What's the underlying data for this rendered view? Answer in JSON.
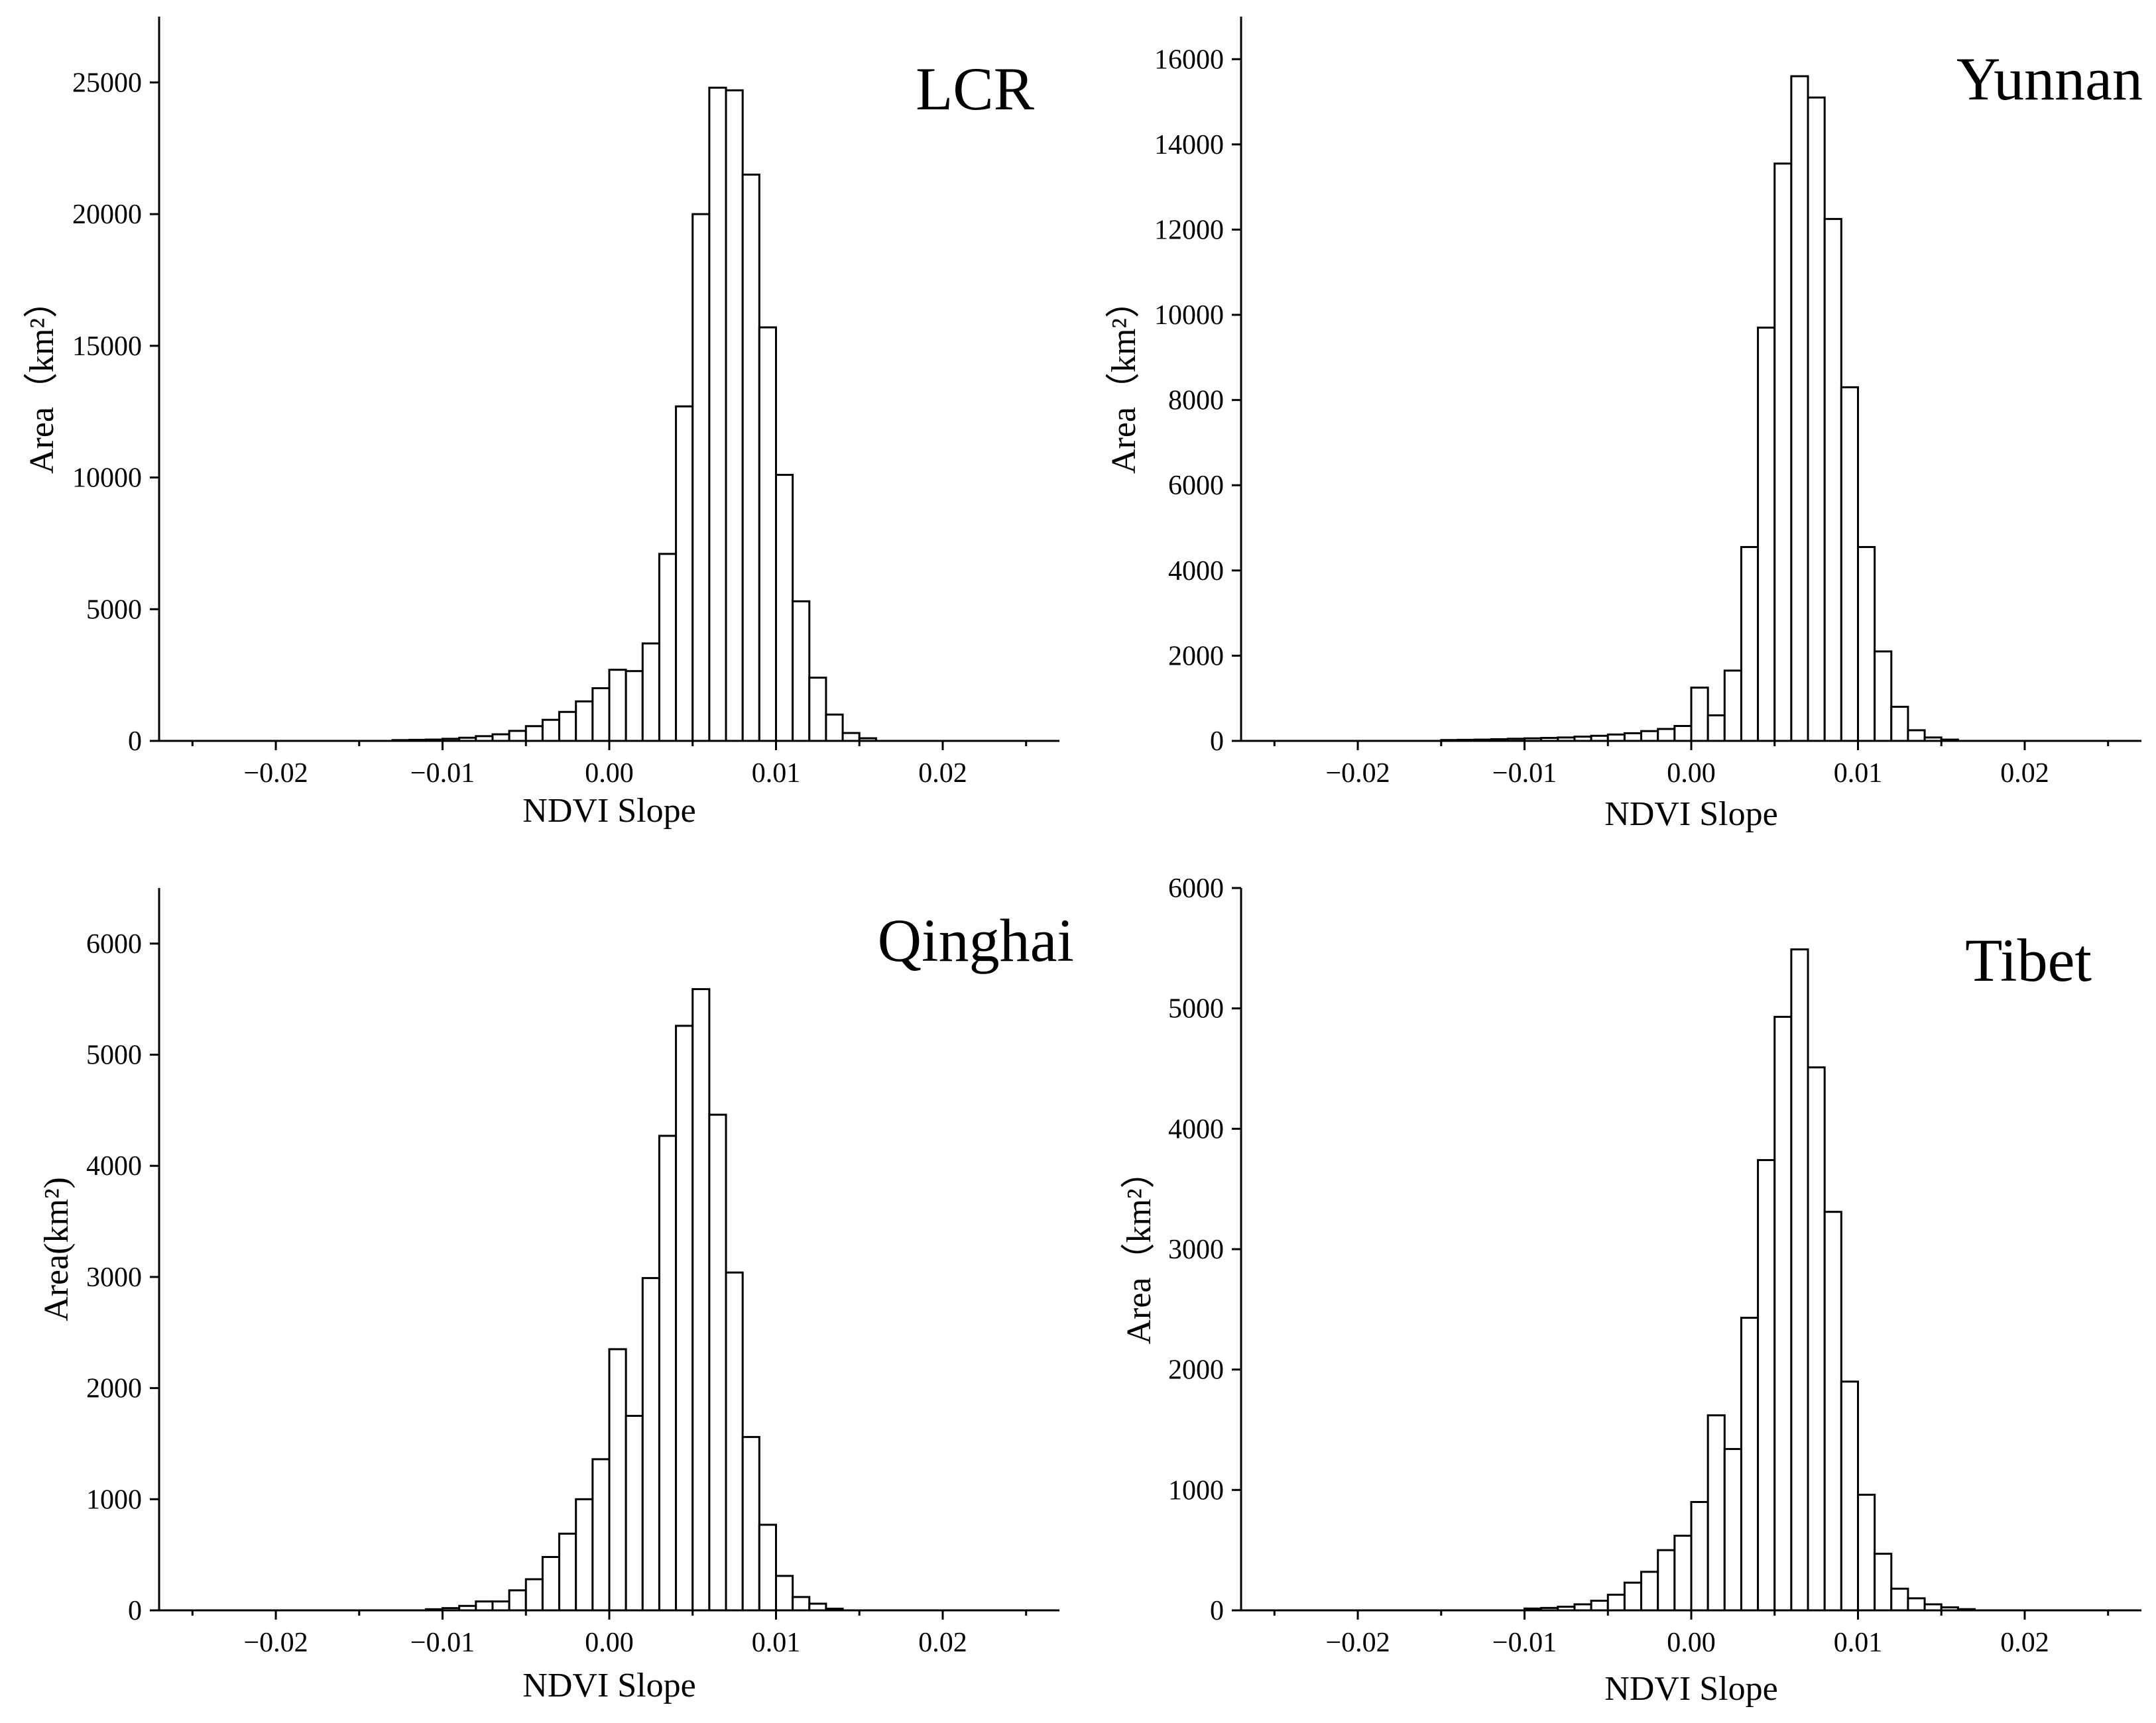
{
  "chart_data": [
    {
      "type": "bar",
      "title": "LCR",
      "xlabel": "NDVI Slope",
      "ylabel": "Area（km²）",
      "xlim": [
        -0.027,
        0.027
      ],
      "ylim": [
        0,
        27500
      ],
      "xticks": [
        -0.02,
        -0.01,
        0.0,
        0.01,
        0.02
      ],
      "xtick_labels": [
        "−0.02",
        "−0.01",
        "0.00",
        "0.01",
        "0.02"
      ],
      "yticks": [
        0,
        5000,
        10000,
        15000,
        20000,
        25000
      ],
      "ytick_labels": [
        "0",
        "5000",
        "10000",
        "15000",
        "20000",
        "25000"
      ],
      "bin_width": 0.001,
      "x": [
        -0.0125,
        -0.0115,
        -0.0105,
        -0.0095,
        -0.0085,
        -0.0075,
        -0.0065,
        -0.0055,
        -0.0045,
        -0.0035,
        -0.0025,
        -0.0015,
        -0.0005,
        0.0005,
        0.0015,
        0.0025,
        0.0035,
        0.0045,
        0.0055,
        0.0065,
        0.0075,
        0.0085,
        0.0095,
        0.0105,
        0.0115,
        0.0125,
        0.0135,
        0.0145,
        0.0155
      ],
      "values": [
        30,
        40,
        50,
        80,
        120,
        180,
        250,
        380,
        560,
        800,
        1100,
        1500,
        2000,
        2700,
        2650,
        3700,
        7100,
        12700,
        20000,
        24800,
        24700,
        21500,
        15700,
        10100,
        5300,
        2400,
        1000,
        300,
        100
      ]
    },
    {
      "type": "bar",
      "title": "Yunnan",
      "xlabel": "NDVI Slope",
      "ylabel": "Area（km²）",
      "xlim": [
        -0.027,
        0.027
      ],
      "ylim": [
        0,
        17000
      ],
      "xticks": [
        -0.02,
        -0.01,
        0.0,
        0.01,
        0.02
      ],
      "xtick_labels": [
        "−0.02",
        "−0.01",
        "0.00",
        "0.01",
        "0.02"
      ],
      "yticks": [
        0,
        2000,
        4000,
        6000,
        8000,
        10000,
        12000,
        14000,
        16000
      ],
      "ytick_labels": [
        "0",
        "2000",
        "4000",
        "6000",
        "8000",
        "10000",
        "12000",
        "14000",
        "16000"
      ],
      "bin_width": 0.001,
      "x": [
        -0.0145,
        -0.0135,
        -0.0125,
        -0.0115,
        -0.0105,
        -0.0095,
        -0.0085,
        -0.0075,
        -0.0065,
        -0.0055,
        -0.0045,
        -0.0035,
        -0.0025,
        -0.0015,
        -0.0005,
        0.0005,
        0.0015,
        0.0025,
        0.0035,
        0.0045,
        0.0055,
        0.0065,
        0.0075,
        0.0085,
        0.0095,
        0.0105,
        0.0115,
        0.0125,
        0.0135,
        0.0145,
        0.0155
      ],
      "values": [
        20,
        25,
        30,
        40,
        50,
        60,
        70,
        80,
        100,
        120,
        150,
        180,
        230,
        280,
        350,
        1250,
        600,
        1650,
        4550,
        9700,
        13550,
        15600,
        15100,
        12250,
        8300,
        4550,
        2100,
        800,
        250,
        80,
        30
      ]
    },
    {
      "type": "bar",
      "title": "Qinghai",
      "xlabel": "NDVI Slope",
      "ylabel": "Area(km²)",
      "xlim": [
        -0.027,
        0.027
      ],
      "ylim": [
        0,
        6500
      ],
      "xticks": [
        -0.02,
        -0.01,
        0.0,
        0.01,
        0.02
      ],
      "xtick_labels": [
        "−0.02",
        "−0.01",
        "0.00",
        "0.01",
        "0.02"
      ],
      "yticks": [
        0,
        1000,
        2000,
        3000,
        4000,
        5000,
        6000
      ],
      "ytick_labels": [
        "0",
        "1000",
        "2000",
        "3000",
        "4000",
        "5000",
        "6000"
      ],
      "bin_width": 0.001,
      "x": [
        -0.0105,
        -0.0095,
        -0.0085,
        -0.0075,
        -0.0065,
        -0.0055,
        -0.0045,
        -0.0035,
        -0.0025,
        -0.0015,
        -0.0005,
        0.0005,
        0.0015,
        0.0025,
        0.0035,
        0.0045,
        0.0055,
        0.0065,
        0.0075,
        0.0085,
        0.0095,
        0.0105,
        0.0115,
        0.0125,
        0.0135
      ],
      "values": [
        10,
        20,
        40,
        80,
        80,
        180,
        280,
        480,
        690,
        1000,
        1360,
        2350,
        1750,
        2990,
        4270,
        5260,
        5590,
        4460,
        3040,
        1560,
        770,
        310,
        120,
        60,
        15
      ]
    },
    {
      "type": "bar",
      "title": "Tibet",
      "xlabel": "NDVI Slope",
      "ylabel": "Area（km²）",
      "xlim": [
        -0.027,
        0.027
      ],
      "ylim": [
        0,
        6000
      ],
      "xticks": [
        -0.02,
        -0.01,
        0.0,
        0.01,
        0.02
      ],
      "xtick_labels": [
        "−0.02",
        "−0.01",
        "0.00",
        "0.01",
        "0.02"
      ],
      "yticks": [
        0,
        1000,
        2000,
        3000,
        4000,
        5000,
        6000
      ],
      "ytick_labels": [
        "0",
        "1000",
        "2000",
        "3000",
        "4000",
        "5000",
        "6000"
      ],
      "bin_width": 0.001,
      "x": [
        -0.0095,
        -0.0085,
        -0.0075,
        -0.0065,
        -0.0055,
        -0.0045,
        -0.0035,
        -0.0025,
        -0.0015,
        -0.0005,
        0.0005,
        0.0015,
        0.0025,
        0.0035,
        0.0045,
        0.0055,
        0.0065,
        0.0075,
        0.0085,
        0.0095,
        0.0105,
        0.0115,
        0.0125,
        0.0135,
        0.0145,
        0.0155,
        0.0165
      ],
      "values": [
        15,
        20,
        30,
        50,
        80,
        130,
        230,
        320,
        500,
        620,
        900,
        1620,
        1340,
        2430,
        3740,
        4930,
        5490,
        4510,
        3310,
        1900,
        960,
        470,
        180,
        100,
        50,
        25,
        10
      ]
    }
  ]
}
